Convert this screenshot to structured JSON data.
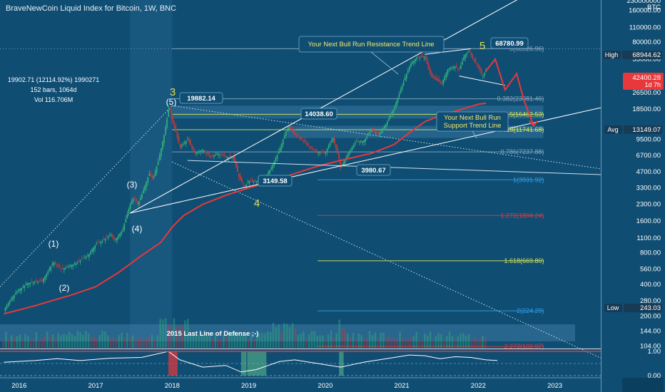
{
  "title": "BraveNewCoin Liquid Index for Bitcoin, 1W, BNC",
  "stats": {
    "line1": "19902.71 (12114.92%) 1990271",
    "line2": "152 bars, 1064d",
    "line3": "Vol 116.706M"
  },
  "colors": {
    "background": "#0f4d73",
    "candle_up": "#2fae7b",
    "candle_down": "#c23b3b",
    "ma": "#e8383b",
    "white_line": "#ffffff",
    "fib_blue": "#2e9ee8",
    "fib_red": "#e8383b",
    "fib_yellow": "#d8e85a",
    "fib_gray": "#8aa9bf"
  },
  "annotations": {
    "resistance": "Your Next Bull Run Resistance Trend Line",
    "support_line1": "Your Next Bull Run",
    "support_line2": "Support Trend Line",
    "defense": "2015 Last Line of Defense ;-)"
  },
  "price_labels": {
    "p19882": "19882.14",
    "p14038": "14038.60",
    "p3149": "3149.58",
    "p3980": "3980.67",
    "p68780": "68780.99"
  },
  "wave_labels": {
    "w1": "(1)",
    "w2": "(2)",
    "w3": "(3)",
    "w4": "(4)",
    "w5": "(5)",
    "big3": "3",
    "big4": "4",
    "big5": "5"
  },
  "right_tags": {
    "high_label": "High",
    "high_value": "68944.62",
    "current_value": "42400.28",
    "current_time": "1d 7h",
    "avg_label": "Avg",
    "avg_value": "13149.07",
    "low_label": "Low",
    "low_value": "243.03"
  },
  "osc_ticks": [
    "1.00",
    "0.00"
  ],
  "chart_data": {
    "type": "line",
    "title": "BraveNewCoin Liquid Index for Bitcoin, 1W, BNC",
    "y_scale": "log",
    "ylim": [
      100,
      230000000
    ],
    "y_ticks": [
      {
        "label": "230000000",
        "value": 230000000
      },
      {
        "label": "160000.00",
        "value": 160000
      },
      {
        "label": "110000.00",
        "value": 110000
      },
      {
        "label": "80000.00",
        "value": 80000
      },
      {
        "label": "55000.00",
        "value": 55000
      },
      {
        "label": "38000.00",
        "value": 38000
      },
      {
        "label": "26500.00",
        "value": 26500
      },
      {
        "label": "18500.00",
        "value": 18500
      },
      {
        "label": "9500.00",
        "value": 9500
      },
      {
        "label": "6700.00",
        "value": 6700
      },
      {
        "label": "4700.00",
        "value": 4700
      },
      {
        "label": "3300.00",
        "value": 3300
      },
      {
        "label": "2300.00",
        "value": 2300
      },
      {
        "label": "1600.00",
        "value": 1600
      },
      {
        "label": "1100.00",
        "value": 1100
      },
      {
        "label": "800.00",
        "value": 800
      },
      {
        "label": "560.00",
        "value": 560
      },
      {
        "label": "400.00",
        "value": 400
      },
      {
        "label": "280.00",
        "value": 280
      },
      {
        "label": "200.00",
        "value": 200
      },
      {
        "label": "144.00",
        "value": 144
      },
      {
        "label": "104.00",
        "value": 104
      }
    ],
    "y_unit": "BTC",
    "x_ticks": [
      "2016",
      "2017",
      "2018",
      "2019",
      "2020",
      "2021",
      "2022",
      "2023"
    ],
    "xlim": [
      2015.75,
      2023.6
    ],
    "series": [
      {
        "name": "",
        "kind": "price",
        "points": [
          [
            2015.8,
            230
          ],
          [
            2015.95,
            330
          ],
          [
            2016.1,
            410
          ],
          [
            2016.3,
            430
          ],
          [
            2016.45,
            650
          ],
          [
            2016.55,
            560
          ],
          [
            2016.62,
            580
          ],
          [
            2016.75,
            640
          ],
          [
            2016.9,
            750
          ],
          [
            2017.0,
            960
          ],
          [
            2017.1,
            1050
          ],
          [
            2017.2,
            1200
          ],
          [
            2017.25,
            1050
          ],
          [
            2017.35,
            1300
          ],
          [
            2017.45,
            2300
          ],
          [
            2017.5,
            2700
          ],
          [
            2017.55,
            2300
          ],
          [
            2017.6,
            2800
          ],
          [
            2017.7,
            4500
          ],
          [
            2017.75,
            4000
          ],
          [
            2017.82,
            6000
          ],
          [
            2017.9,
            11000
          ],
          [
            2017.96,
            19882
          ],
          [
            2018.0,
            14000
          ],
          [
            2018.05,
            11000
          ],
          [
            2018.1,
            8000
          ],
          [
            2018.2,
            9500
          ],
          [
            2018.3,
            7000
          ],
          [
            2018.4,
            7600
          ],
          [
            2018.5,
            6400
          ],
          [
            2018.6,
            7000
          ],
          [
            2018.7,
            6500
          ],
          [
            2018.8,
            6400
          ],
          [
            2018.88,
            4000
          ],
          [
            2018.95,
            3400
          ],
          [
            2019.0,
            3800
          ],
          [
            2019.1,
            3800
          ],
          [
            2019.2,
            4000
          ],
          [
            2019.3,
            5200
          ],
          [
            2019.4,
            7500
          ],
          [
            2019.48,
            11000
          ],
          [
            2019.52,
            12500
          ],
          [
            2019.6,
            10500
          ],
          [
            2019.7,
            9500
          ],
          [
            2019.8,
            8000
          ],
          [
            2019.9,
            7200
          ],
          [
            2020.0,
            7200
          ],
          [
            2020.1,
            9800
          ],
          [
            2020.18,
            6200
          ],
          [
            2020.2,
            5000
          ],
          [
            2020.3,
            7000
          ],
          [
            2020.4,
            9000
          ],
          [
            2020.5,
            9200
          ],
          [
            2020.6,
            11500
          ],
          [
            2020.7,
            10700
          ],
          [
            2020.8,
            13500
          ],
          [
            2020.9,
            19000
          ],
          [
            2021.0,
            30000
          ],
          [
            2021.05,
            38000
          ],
          [
            2021.12,
            50000
          ],
          [
            2021.2,
            57000
          ],
          [
            2021.3,
            58000
          ],
          [
            2021.38,
            38000
          ],
          [
            2021.45,
            35000
          ],
          [
            2021.52,
            32000
          ],
          [
            2021.6,
            44000
          ],
          [
            2021.7,
            47000
          ],
          [
            2021.75,
            43000
          ],
          [
            2021.82,
            60000
          ],
          [
            2021.88,
            65000
          ],
          [
            2021.92,
            57000
          ],
          [
            2022.0,
            47000
          ],
          [
            2022.05,
            38000
          ],
          [
            2022.1,
            42400
          ]
        ]
      },
      {
        "name": "",
        "kind": "moving_average",
        "points": [
          [
            2015.8,
            210
          ],
          [
            2016.2,
            250
          ],
          [
            2016.7,
            320
          ],
          [
            2017.0,
            380
          ],
          [
            2017.3,
            520
          ],
          [
            2017.6,
            750
          ],
          [
            2017.85,
            1000
          ],
          [
            2018.0,
            1400
          ],
          [
            2018.15,
            1800
          ],
          [
            2018.4,
            2300
          ],
          [
            2018.7,
            2800
          ],
          [
            2019.0,
            3300
          ],
          [
            2019.3,
            3800
          ],
          [
            2019.6,
            4500
          ],
          [
            2019.9,
            5300
          ],
          [
            2020.2,
            6000
          ],
          [
            2020.6,
            7000
          ],
          [
            2020.9,
            8500
          ],
          [
            2021.1,
            11000
          ],
          [
            2021.3,
            14000
          ],
          [
            2021.5,
            16000
          ],
          [
            2021.8,
            18500
          ],
          [
            2022.0,
            20500
          ],
          [
            2022.1,
            21000
          ]
        ]
      },
      {
        "name": "",
        "kind": "projection",
        "points": [
          [
            2022.1,
            42400
          ],
          [
            2022.22,
            55000
          ],
          [
            2022.35,
            28000
          ],
          [
            2022.5,
            40000
          ],
          [
            2022.6,
            22000
          ],
          [
            2022.72,
            13000
          ]
        ]
      }
    ],
    "fib_levels": [
      {
        "label": "0(68926.96)",
        "value": 68926.96,
        "color": "#8aa9bf"
      },
      {
        "label": "0.382(23081.46)",
        "value": 23081.46,
        "color": "#8aa9bf"
      },
      {
        "label": "0.5(16462.53)",
        "value": 16462.53,
        "color": "#d8e85a"
      },
      {
        "label": "0.618(11741.68)",
        "value": 11741.68,
        "color": "#d8e85a"
      },
      {
        "label": "0.786(7237.88)",
        "value": 7237.88,
        "color": "#8aa9bf"
      },
      {
        "label": "1(3931.92)",
        "value": 3931.92,
        "color": "#2e9ee8"
      },
      {
        "label": "1.272(1804.24)",
        "value": 1804.24,
        "color": "#e8383b"
      },
      {
        "label": "1.618(669.80)",
        "value": 669.8,
        "color": "#d8e85a"
      },
      {
        "label": "2(224.29)",
        "value": 224.29,
        "color": "#2e9ee8"
      },
      {
        "label": "2.272(102.97)",
        "value": 102.97,
        "color": "#e8383b"
      }
    ],
    "trendlines": [
      {
        "kind": "resistance",
        "from": [
          2017.45,
          1900
        ],
        "to": [
          2023.6,
          550000
        ]
      },
      {
        "kind": "support",
        "from": [
          2017.45,
          1900
        ],
        "to": [
          2023.6,
          19000
        ]
      },
      {
        "kind": "dotted_upper",
        "from": [
          2015.75,
          380
        ],
        "to": [
          2018.0,
          19882
        ]
      },
      {
        "kind": "dotted_descending",
        "from": [
          2018.0,
          19882
        ],
        "to": [
          2023.6,
          5000
        ]
      },
      {
        "kind": "dotted_descending_2",
        "from": [
          2018.0,
          5800
        ],
        "to": [
          2023.6,
          80
        ]
      }
    ],
    "oscillator": {
      "ylim": [
        0,
        1
      ],
      "points": [
        [
          2015.8,
          0.55
        ],
        [
          2016.2,
          0.62
        ],
        [
          2016.5,
          0.7
        ],
        [
          2016.8,
          0.62
        ],
        [
          2017.2,
          0.72
        ],
        [
          2017.6,
          0.75
        ],
        [
          2017.95,
          1.0
        ],
        [
          2018.1,
          0.65
        ],
        [
          2018.4,
          0.35
        ],
        [
          2018.7,
          0.42
        ],
        [
          2018.9,
          0.15
        ],
        [
          2019.1,
          0.25
        ],
        [
          2019.4,
          0.58
        ],
        [
          2019.6,
          0.65
        ],
        [
          2019.9,
          0.5
        ],
        [
          2020.2,
          0.35
        ],
        [
          2020.5,
          0.55
        ],
        [
          2020.8,
          0.7
        ],
        [
          2021.1,
          0.85
        ],
        [
          2021.3,
          0.82
        ],
        [
          2021.5,
          0.7
        ],
        [
          2021.7,
          0.78
        ],
        [
          2021.9,
          0.75
        ],
        [
          2022.1,
          0.65
        ],
        [
          2022.25,
          0.62
        ]
      ]
    }
  }
}
